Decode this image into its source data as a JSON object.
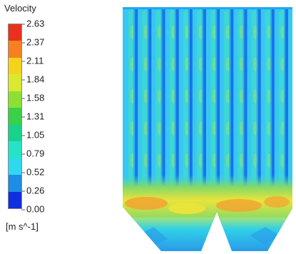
{
  "legend": {
    "title": "Velocity",
    "unit": "[m s^-1]",
    "ticks": [
      "2.63",
      "2.37",
      "2.11",
      "1.84",
      "1.58",
      "1.31",
      "1.05",
      "0.79",
      "0.52",
      "0.26",
      "0.00"
    ],
    "colors_top_to_bottom": [
      "#e8321c",
      "#f7801f",
      "#f5d31a",
      "#d9e831",
      "#8be033",
      "#38d148",
      "#17d28c",
      "#25e3c7",
      "#2fd8f0",
      "#1d8de6",
      "#0f2fe0"
    ]
  },
  "field": {
    "colors": {
      "background": "#36c7f3",
      "column_core": "#1a73e8",
      "column_inner": "#20a9ef",
      "cell_fill": "#3fd6d4",
      "cell_accent": "#7fe08a",
      "band_green": "#7fd86a",
      "band_yellow": "#e9e43a",
      "band_orange": "#f2a330",
      "hopper_fill": "#2fd0e8",
      "hopper_edge": "#2a9ae8"
    },
    "channel_count": 12
  }
}
